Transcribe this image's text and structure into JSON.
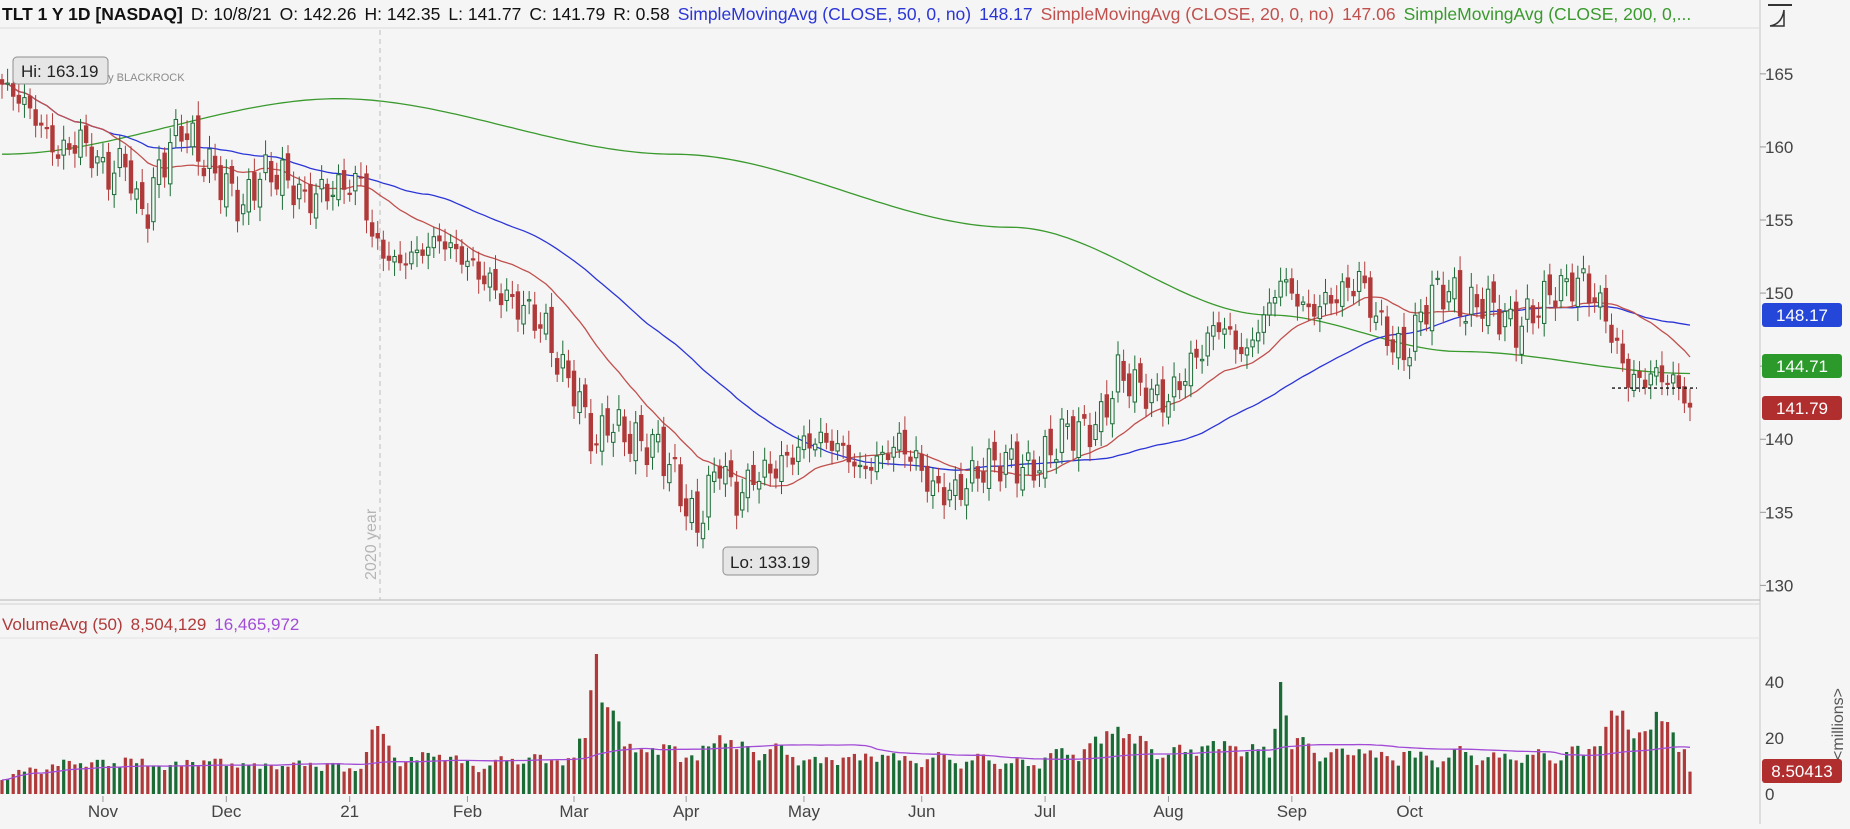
{
  "header": {
    "symbol": "TLT 1 Y 1D [NASDAQ]",
    "date": "D: 10/8/21",
    "open": "O: 142.26",
    "high": "H: 142.35",
    "low": "L: 141.77",
    "close": "C: 141.79",
    "range": "R: 0.58",
    "sma50_label": "SimpleMovingAvg (CLOSE, 50, 0, no)",
    "sma50_value": "148.17",
    "sma20_label": "SimpleMovingAvg (CLOSE, 20, 0, no)",
    "sma20_value": "147.06",
    "sma200_label": "SimpleMovingAvg (CLOSE, 200, 0,..."
  },
  "watermark": "by BLACKROCK",
  "year_marker": "2020 year",
  "hi_label": "Hi: 163.19",
  "lo_label": "Lo: 133.19",
  "price_tags": {
    "sma50": "148.17",
    "sma200": "144.71",
    "last": "141.79"
  },
  "volume_header": {
    "label": "VolumeAvg (50)",
    "value": "8,504,129",
    "avg": "16,465,972"
  },
  "volume_tag": "8.50413",
  "volume_axis_label": "<millions>",
  "colors": {
    "up": "#1b6b36",
    "down": "#b03a3a",
    "sma50": "#2b35d6",
    "sma20": "#c0504d",
    "sma200": "#3a9a2e",
    "volavg": "#a24bd6",
    "tag_blue": "#2547d9",
    "tag_green": "#2b9a2b",
    "tag_red": "#b02e2e",
    "background": "#f5f5f5"
  },
  "chart_data": {
    "type": "candlestick",
    "period": "1 year, daily",
    "price_axis": {
      "ylim": [
        129,
        168
      ],
      "ticks": [
        130,
        135,
        140,
        145,
        150,
        155,
        160,
        165
      ]
    },
    "volume_axis": {
      "unit": "millions",
      "ylim": [
        0,
        55
      ],
      "ticks": [
        0,
        20,
        40
      ]
    },
    "x_ticks": [
      "Nov",
      "Dec",
      "21",
      "Feb",
      "Mar",
      "Apr",
      "May",
      "Jun",
      "Jul",
      "Aug",
      "Sep",
      "Oct"
    ],
    "anchors": [
      [
        0,
        164.3,
        5
      ],
      [
        4,
        163.0,
        8
      ],
      [
        6,
        162.0,
        9
      ],
      [
        10,
        159.5,
        10
      ],
      [
        14,
        160.5,
        11
      ],
      [
        19,
        158.0,
        10
      ],
      [
        22,
        159.2,
        13
      ],
      [
        24,
        156.0,
        11
      ],
      [
        26,
        155.6,
        10
      ],
      [
        28,
        158.5,
        10
      ],
      [
        32,
        161.5,
        10
      ],
      [
        36,
        159.0,
        12
      ],
      [
        40,
        157.3,
        10
      ],
      [
        43,
        155.8,
        11
      ],
      [
        46,
        158.2,
        9
      ],
      [
        50,
        158.0,
        10
      ],
      [
        54,
        156.4,
        10
      ],
      [
        58,
        157.0,
        11
      ],
      [
        61,
        157.3,
        8
      ],
      [
        64,
        157.7,
        9
      ],
      [
        66,
        153.7,
        23
      ],
      [
        70,
        152.0,
        13
      ],
      [
        74,
        152.7,
        12
      ],
      [
        78,
        153.7,
        14
      ],
      [
        82,
        152.5,
        11
      ],
      [
        86,
        151.0,
        9
      ],
      [
        90,
        149.6,
        12
      ],
      [
        94,
        148.7,
        13
      ],
      [
        97,
        147.5,
        11
      ],
      [
        99,
        145.3,
        12
      ],
      [
        102,
        143.5,
        13
      ],
      [
        104,
        141.5,
        20
      ],
      [
        106,
        139.5,
        50
      ],
      [
        108,
        141.3,
        31
      ],
      [
        111,
        140.3,
        17
      ],
      [
        114,
        139.7,
        16
      ],
      [
        117,
        139.5,
        14
      ],
      [
        120,
        137.5,
        17
      ],
      [
        122,
        135.3,
        13
      ],
      [
        124,
        134.0,
        12
      ],
      [
        126,
        136.5,
        17
      ],
      [
        128,
        138.5,
        21
      ],
      [
        131,
        135.8,
        16
      ],
      [
        134,
        137.5,
        15
      ],
      [
        137,
        137.8,
        16
      ],
      [
        140,
        138.6,
        14
      ],
      [
        143,
        139.7,
        12
      ],
      [
        146,
        140.0,
        11
      ],
      [
        150,
        139.3,
        13
      ],
      [
        153,
        137.8,
        12
      ],
      [
        157,
        138.8,
        14
      ],
      [
        160,
        139.8,
        12
      ],
      [
        163,
        138.5,
        11
      ],
      [
        166,
        136.6,
        13
      ],
      [
        170,
        136.3,
        11
      ],
      [
        173,
        137.4,
        12
      ],
      [
        176,
        138.3,
        12
      ],
      [
        180,
        138.5,
        11
      ],
      [
        183,
        137.8,
        10
      ],
      [
        186,
        138.8,
        13
      ],
      [
        190,
        140.7,
        14
      ],
      [
        193,
        140.5,
        16
      ],
      [
        196,
        141.3,
        18
      ],
      [
        199,
        144.5,
        24
      ],
      [
        202,
        143.8,
        18
      ],
      [
        205,
        143.0,
        16
      ],
      [
        208,
        142.7,
        14
      ],
      [
        211,
        144.5,
        15
      ],
      [
        214,
        146.2,
        17
      ],
      [
        217,
        148.0,
        16
      ],
      [
        220,
        146.5,
        17
      ],
      [
        222,
        145.8,
        15
      ],
      [
        224,
        147.7,
        16
      ],
      [
        226,
        149.0,
        13
      ],
      [
        228,
        151.0,
        40
      ],
      [
        230,
        150.0,
        16
      ],
      [
        233,
        148.7,
        18
      ],
      [
        236,
        149.4,
        13
      ],
      [
        240,
        150.3,
        14
      ],
      [
        242,
        151.0,
        16
      ],
      [
        245,
        148.4,
        13
      ],
      [
        248,
        146.5,
        12
      ],
      [
        250,
        145.7,
        15
      ],
      [
        252,
        147.5,
        13
      ],
      [
        255,
        150.0,
        12
      ],
      [
        258,
        150.2,
        13
      ],
      [
        261,
        148.8,
        15
      ],
      [
        264,
        149.5,
        12
      ],
      [
        267,
        148.6,
        13
      ],
      [
        270,
        147.5,
        12
      ],
      [
        273,
        148.7,
        14
      ],
      [
        276,
        150.0,
        12
      ],
      [
        279,
        150.5,
        15
      ],
      [
        282,
        150.8,
        14
      ],
      [
        284,
        149.6,
        17
      ],
      [
        286,
        148.5,
        24
      ],
      [
        288,
        146.0,
        28
      ],
      [
        290,
        144.3,
        23
      ],
      [
        292,
        143.8,
        22
      ],
      [
        294,
        144.5,
        23
      ],
      [
        296,
        144.2,
        26
      ],
      [
        298,
        144.0,
        22
      ],
      [
        300,
        142.9,
        16
      ],
      [
        301,
        142.2,
        8
      ]
    ],
    "series": [
      {
        "name": "SimpleMovingAvg (CLOSE, 50, 0, no)",
        "period": 50,
        "last": 148.17
      },
      {
        "name": "SimpleMovingAvg (CLOSE, 20, 0, no)",
        "period": 20,
        "last": 147.06
      },
      {
        "name": "SimpleMovingAvg (CLOSE, 200, 0,...",
        "period": 200,
        "last": 144.71
      },
      {
        "name": "VolumeAvg (50)",
        "period": 50,
        "last": 16.465972
      }
    ],
    "annotations": [
      "Hi: 163.19",
      "Lo: 133.19"
    ],
    "support_level": 143.5,
    "grid": false,
    "legend": "top"
  }
}
